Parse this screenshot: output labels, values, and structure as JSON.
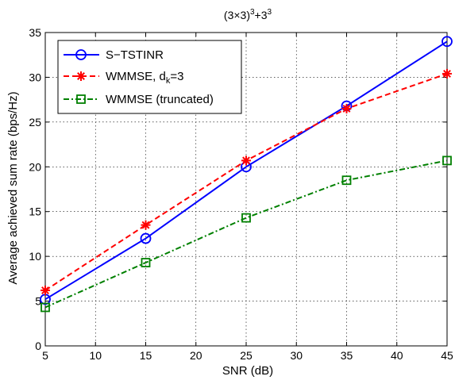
{
  "chart_data": {
    "type": "line",
    "title": "(3×3)",
    "title_sup1": "3",
    "title_mid": "+3",
    "title_sup2": "3",
    "xlabel": "SNR (dB)",
    "ylabel": "Average achieved sum rate (bps/Hz)",
    "xlim": [
      5,
      45
    ],
    "ylim": [
      0,
      35
    ],
    "xticks": [
      5,
      10,
      15,
      20,
      25,
      30,
      35,
      40,
      45
    ],
    "yticks": [
      0,
      5,
      10,
      15,
      20,
      25,
      30,
      35
    ],
    "grid": true,
    "legend_position": "top-left",
    "x": [
      5,
      15,
      25,
      35,
      45
    ],
    "series": [
      {
        "name": "S−TSTINR",
        "values": [
          5.2,
          12.0,
          20.0,
          26.8,
          34.0
        ],
        "color": "#0000ff",
        "line": "solid",
        "marker": "circle"
      },
      {
        "name": "WMMSE, d",
        "name_sub": "k",
        "name_tail": "=3",
        "values": [
          6.2,
          13.5,
          20.7,
          26.5,
          30.4
        ],
        "color": "#ff0000",
        "line": "dashed",
        "marker": "star"
      },
      {
        "name": "WMMSE (truncated)",
        "values": [
          4.3,
          9.3,
          14.3,
          18.5,
          20.7
        ],
        "color": "#008000",
        "line": "dashdot",
        "marker": "square"
      }
    ]
  }
}
